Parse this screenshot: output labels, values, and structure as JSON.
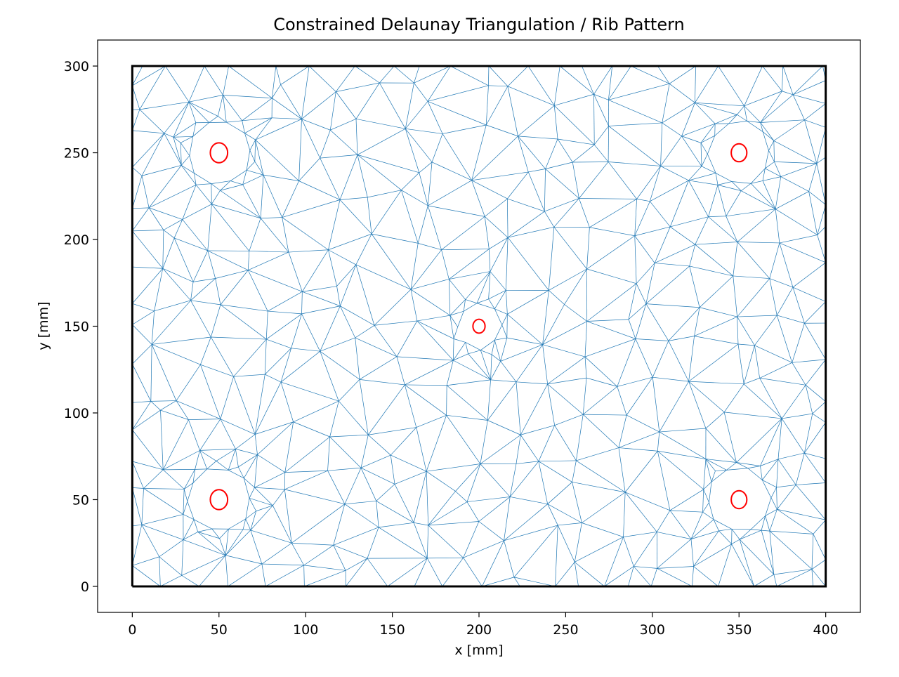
{
  "chart_data": {
    "type": "triangulation",
    "title": "Constrained Delaunay Triangulation / Rib Pattern",
    "xlabel": "x [mm]",
    "ylabel": "y [mm]",
    "xlim": [
      -20,
      420
    ],
    "ylim": [
      -15,
      315
    ],
    "xticks": [
      0,
      50,
      100,
      150,
      200,
      250,
      300,
      350,
      400
    ],
    "yticks": [
      0,
      50,
      100,
      150,
      200,
      250,
      300
    ],
    "grid": false,
    "boundary": {
      "x": [
        0,
        400,
        400,
        0,
        0
      ],
      "y": [
        0,
        0,
        300,
        300,
        0
      ],
      "color": "#000000"
    },
    "holes": [
      {
        "cx": 50,
        "cy": 250,
        "r": 5
      },
      {
        "cx": 350,
        "cy": 250,
        "r": 4.5
      },
      {
        "cx": 50,
        "cy": 50,
        "r": 5
      },
      {
        "cx": 350,
        "cy": 50,
        "r": 4.5
      },
      {
        "cx": 200,
        "cy": 150,
        "r": 3.5
      }
    ],
    "hole_color": "#ff0000",
    "mesh_color": "#1f77b4"
  }
}
